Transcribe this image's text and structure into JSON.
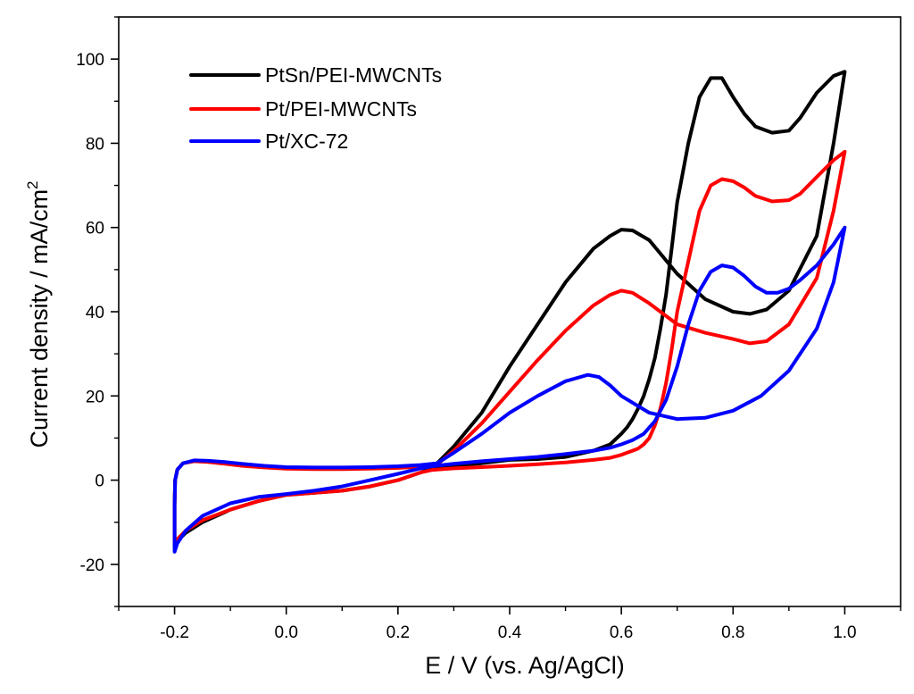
{
  "chart_data": {
    "type": "line",
    "title": "",
    "xlabel": "E / V (vs. Ag/AgCl)",
    "ylabel_main": "Current density / mA/cm",
    "ylabel_sup": "2",
    "xlim": [
      -0.3,
      1.1
    ],
    "ylim": [
      -30,
      110
    ],
    "xticks": [
      -0.2,
      0.0,
      0.2,
      0.4,
      0.6,
      0.8,
      1.0
    ],
    "xtick_labels": [
      "-0.2",
      "0.0",
      "0.2",
      "0.4",
      "0.6",
      "0.8",
      "1.0"
    ],
    "yticks": [
      -20,
      0,
      20,
      40,
      60,
      80,
      100
    ],
    "ytick_labels": [
      "-20",
      "0",
      "20",
      "40",
      "60",
      "80",
      "100"
    ],
    "legend_position": "top-left",
    "series": [
      {
        "name": "PtSn/PEI-MWCNTs",
        "color": "#000000",
        "x": [
          -0.2,
          -0.2,
          -0.199,
          -0.195,
          -0.185,
          -0.165,
          -0.14,
          -0.11,
          -0.08,
          -0.04,
          0.0,
          0.05,
          0.1,
          0.15,
          0.2,
          0.24,
          0.27,
          0.3,
          0.35,
          0.4,
          0.45,
          0.5,
          0.55,
          0.58,
          0.6,
          0.62,
          0.65,
          0.7,
          0.75,
          0.8,
          0.83,
          0.86,
          0.9,
          0.95,
          0.98,
          1.0,
          0.98,
          0.95,
          0.92,
          0.9,
          0.87,
          0.84,
          0.82,
          0.8,
          0.78,
          0.76,
          0.74,
          0.72,
          0.7,
          0.69,
          0.68,
          0.67,
          0.66,
          0.65,
          0.64,
          0.63,
          0.62,
          0.61,
          0.6,
          0.58,
          0.55,
          0.5,
          0.45,
          0.4,
          0.35,
          0.3,
          0.28,
          0.26,
          0.24,
          0.2,
          0.15,
          0.1,
          0.05,
          0.0,
          -0.05,
          -0.1,
          -0.15,
          -0.18,
          -0.195,
          -0.2
        ],
        "y": [
          -16,
          -6,
          0,
          2.5,
          4.0,
          4.6,
          4.4,
          4.0,
          3.5,
          3.1,
          2.8,
          2.8,
          2.8,
          3.0,
          3.2,
          3.5,
          4.0,
          8.0,
          16,
          27,
          37,
          47,
          55,
          58,
          59.5,
          59.3,
          57,
          49,
          43,
          40,
          39.5,
          40.5,
          45,
          58,
          80,
          97,
          96,
          92,
          86,
          83,
          82.5,
          84,
          87,
          91,
          95.5,
          95.5,
          91,
          80,
          66,
          55,
          44,
          36,
          29,
          24,
          20,
          17,
          14.5,
          12.5,
          11,
          8.5,
          7.0,
          5.5,
          5.0,
          4.8,
          4.0,
          3.5,
          3.2,
          2.8,
          1.8,
          0,
          -1.5,
          -2.5,
          -3.0,
          -3.5,
          -5,
          -7,
          -10,
          -12.5,
          -14.5,
          -16
        ]
      },
      {
        "name": "Pt/PEI-MWCNTs",
        "color": "#ff0000",
        "x": [
          -0.2,
          -0.2,
          -0.199,
          -0.195,
          -0.185,
          -0.165,
          -0.14,
          -0.11,
          -0.08,
          -0.04,
          0.0,
          0.05,
          0.1,
          0.15,
          0.2,
          0.24,
          0.27,
          0.3,
          0.35,
          0.4,
          0.45,
          0.5,
          0.55,
          0.58,
          0.6,
          0.62,
          0.65,
          0.7,
          0.75,
          0.8,
          0.83,
          0.86,
          0.9,
          0.95,
          0.98,
          1.0,
          0.98,
          0.95,
          0.92,
          0.9,
          0.87,
          0.84,
          0.82,
          0.8,
          0.78,
          0.76,
          0.74,
          0.72,
          0.7,
          0.69,
          0.68,
          0.67,
          0.66,
          0.65,
          0.64,
          0.63,
          0.62,
          0.61,
          0.6,
          0.58,
          0.55,
          0.5,
          0.45,
          0.4,
          0.35,
          0.3,
          0.28,
          0.26,
          0.24,
          0.2,
          0.15,
          0.1,
          0.05,
          0.0,
          -0.05,
          -0.1,
          -0.15,
          -0.18,
          -0.195,
          -0.2
        ],
        "y": [
          -15,
          -6,
          0,
          2.5,
          4.0,
          4.5,
          4.3,
          3.9,
          3.4,
          3.0,
          2.7,
          2.6,
          2.6,
          2.7,
          2.9,
          3.2,
          3.7,
          7.0,
          13.5,
          21,
          28.5,
          35.5,
          41.5,
          44,
          45,
          44.5,
          42,
          37,
          35,
          33.5,
          32.5,
          33,
          37,
          48,
          64,
          78,
          76,
          72,
          68,
          66.5,
          66.2,
          67.5,
          69.5,
          71,
          71.5,
          70,
          64,
          52,
          40,
          31,
          23,
          17,
          13,
          10,
          8.5,
          7.5,
          7.0,
          6.5,
          6.0,
          5.3,
          4.8,
          4.2,
          3.8,
          3.4,
          3.1,
          2.8,
          2.6,
          2.4,
          1.8,
          0,
          -1.5,
          -2.5,
          -3.0,
          -3.5,
          -5,
          -7,
          -9.5,
          -12,
          -14,
          -15
        ]
      },
      {
        "name": "Pt/XC-72",
        "color": "#0000ff",
        "x": [
          -0.2,
          -0.2,
          -0.199,
          -0.195,
          -0.185,
          -0.165,
          -0.14,
          -0.11,
          -0.08,
          -0.04,
          0.0,
          0.05,
          0.1,
          0.15,
          0.2,
          0.24,
          0.27,
          0.3,
          0.35,
          0.4,
          0.45,
          0.5,
          0.54,
          0.56,
          0.58,
          0.6,
          0.65,
          0.7,
          0.75,
          0.8,
          0.85,
          0.9,
          0.95,
          0.98,
          1.0,
          0.98,
          0.95,
          0.92,
          0.9,
          0.88,
          0.86,
          0.84,
          0.82,
          0.8,
          0.78,
          0.76,
          0.74,
          0.72,
          0.7,
          0.68,
          0.66,
          0.64,
          0.62,
          0.6,
          0.58,
          0.55,
          0.5,
          0.45,
          0.4,
          0.35,
          0.3,
          0.28,
          0.26,
          0.24,
          0.2,
          0.15,
          0.1,
          0.05,
          0.0,
          -0.05,
          -0.1,
          -0.15,
          -0.18,
          -0.195,
          -0.2
        ],
        "y": [
          -17,
          -6,
          0,
          2.5,
          4.0,
          4.7,
          4.6,
          4.3,
          3.9,
          3.4,
          3.1,
          3.0,
          3.0,
          3.1,
          3.3,
          3.6,
          4.0,
          6.5,
          11,
          16,
          20,
          23.5,
          25,
          24.5,
          22.5,
          20,
          16,
          14.5,
          14.8,
          16.5,
          20,
          26,
          36,
          47,
          60,
          56,
          51,
          47.5,
          45.5,
          44.5,
          44.5,
          46,
          48.5,
          50.5,
          51,
          49.5,
          45,
          37,
          27,
          19,
          14,
          11,
          9.5,
          8.5,
          7.7,
          7.0,
          6.2,
          5.5,
          5.0,
          4.5,
          3.9,
          3.6,
          3.3,
          2.8,
          1.5,
          0,
          -1.5,
          -2.5,
          -3.3,
          -4.0,
          -5.5,
          -8.5,
          -12,
          -15,
          -17
        ]
      }
    ]
  }
}
